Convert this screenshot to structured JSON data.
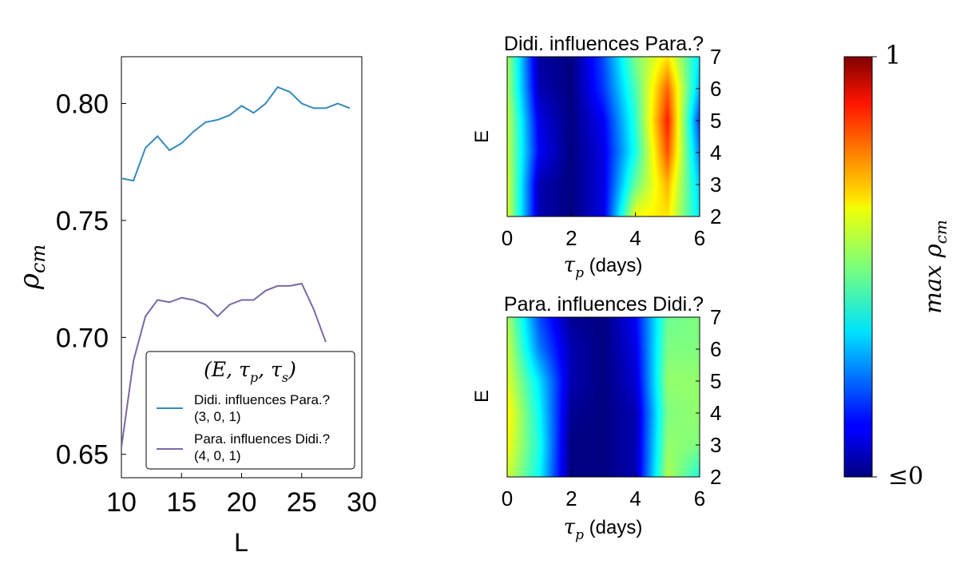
{
  "chart_data": [
    {
      "type": "line",
      "xlabel": "L",
      "ylabel": "ρ_cm",
      "xlim": [
        10,
        30
      ],
      "ylim": [
        0.64,
        0.82
      ],
      "x_ticks": [
        "10",
        "15",
        "20",
        "25",
        "30"
      ],
      "y_ticks": [
        "0.65",
        "0.70",
        "0.75",
        "0.80"
      ],
      "x": [
        10,
        11,
        12,
        13,
        14,
        15,
        16,
        17,
        18,
        19,
        20,
        21,
        22,
        23,
        24,
        25,
        26,
        27,
        28,
        29
      ],
      "series": [
        {
          "name": "Didi. influences Para.?",
          "params": "(3, 0, 1)",
          "color": "#348abd",
          "values": [
            0.768,
            0.767,
            0.781,
            0.786,
            0.78,
            0.783,
            0.788,
            0.792,
            0.793,
            0.795,
            0.799,
            0.796,
            0.8,
            0.807,
            0.805,
            0.8,
            0.798,
            0.798,
            0.8,
            0.798
          ]
        },
        {
          "name": "Para. influences Didi.?",
          "params": "(4, 0, 1)",
          "color": "#7a68a6",
          "values": [
            0.653,
            0.69,
            0.709,
            0.716,
            0.715,
            0.717,
            0.716,
            0.714,
            0.709,
            0.714,
            0.716,
            0.716,
            0.72,
            0.722,
            0.722,
            0.723,
            0.712,
            0.698,
            null,
            null
          ]
        }
      ],
      "legend": {
        "title": "(E, τ_p, τ_s)",
        "placement": "lower-right"
      },
      "grid": false
    },
    {
      "type": "heatmap",
      "title": "Didi. influences Para.?",
      "xlabel_symbol": "τ_p",
      "xlabel_unit": "(days)",
      "ylabel": "E",
      "xlim": [
        0,
        6
      ],
      "ylim": [
        2,
        7
      ],
      "x_ticks": [
        "0",
        "2",
        "4",
        "6"
      ],
      "y_ticks": [
        "2",
        "3",
        "4",
        "5",
        "6",
        "7"
      ],
      "x": [
        0,
        1,
        2,
        3,
        4,
        5,
        6
      ],
      "y": [
        2,
        3,
        4,
        5,
        6,
        7
      ],
      "values": [
        [
          0.6,
          0.05,
          0.0,
          0.1,
          0.62,
          0.65,
          0.35
        ],
        [
          0.6,
          0.05,
          0.0,
          0.1,
          0.48,
          0.7,
          0.32
        ],
        [
          0.58,
          0.12,
          0.0,
          0.1,
          0.4,
          0.8,
          0.25
        ],
        [
          0.58,
          0.1,
          0.0,
          0.12,
          0.42,
          0.85,
          0.18
        ],
        [
          0.55,
          0.05,
          0.0,
          0.18,
          0.45,
          0.78,
          0.3
        ],
        [
          0.55,
          0.03,
          0.0,
          0.2,
          0.5,
          0.65,
          0.35
        ]
      ]
    },
    {
      "type": "heatmap",
      "title": "Para. influences Didi.?",
      "xlabel_symbol": "τ_p",
      "xlabel_unit": "(days)",
      "ylabel": "E",
      "xlim": [
        0,
        6
      ],
      "ylim": [
        2,
        7
      ],
      "x_ticks": [
        "0",
        "2",
        "4",
        "6"
      ],
      "y_ticks": [
        "2",
        "3",
        "4",
        "5",
        "6",
        "7"
      ],
      "x": [
        0,
        1,
        2,
        3,
        4,
        5,
        6
      ],
      "y": [
        2,
        3,
        4,
        5,
        6,
        7
      ],
      "values": [
        [
          0.58,
          0.38,
          0.0,
          0.0,
          0.05,
          0.55,
          0.4
        ],
        [
          0.62,
          0.4,
          0.0,
          0.0,
          0.05,
          0.52,
          0.5
        ],
        [
          0.64,
          0.38,
          0.02,
          0.0,
          0.05,
          0.5,
          0.52
        ],
        [
          0.6,
          0.35,
          0.05,
          0.0,
          0.08,
          0.52,
          0.52
        ],
        [
          0.58,
          0.25,
          0.05,
          0.0,
          0.1,
          0.5,
          0.5
        ],
        [
          0.55,
          0.2,
          0.02,
          0.0,
          0.12,
          0.48,
          0.5
        ]
      ]
    }
  ],
  "colorbar": {
    "label": "max ρ_cm",
    "label_rendered": "max ρcm",
    "top_label": "1",
    "bottom_label": "≤0",
    "range": [
      0,
      1
    ]
  }
}
